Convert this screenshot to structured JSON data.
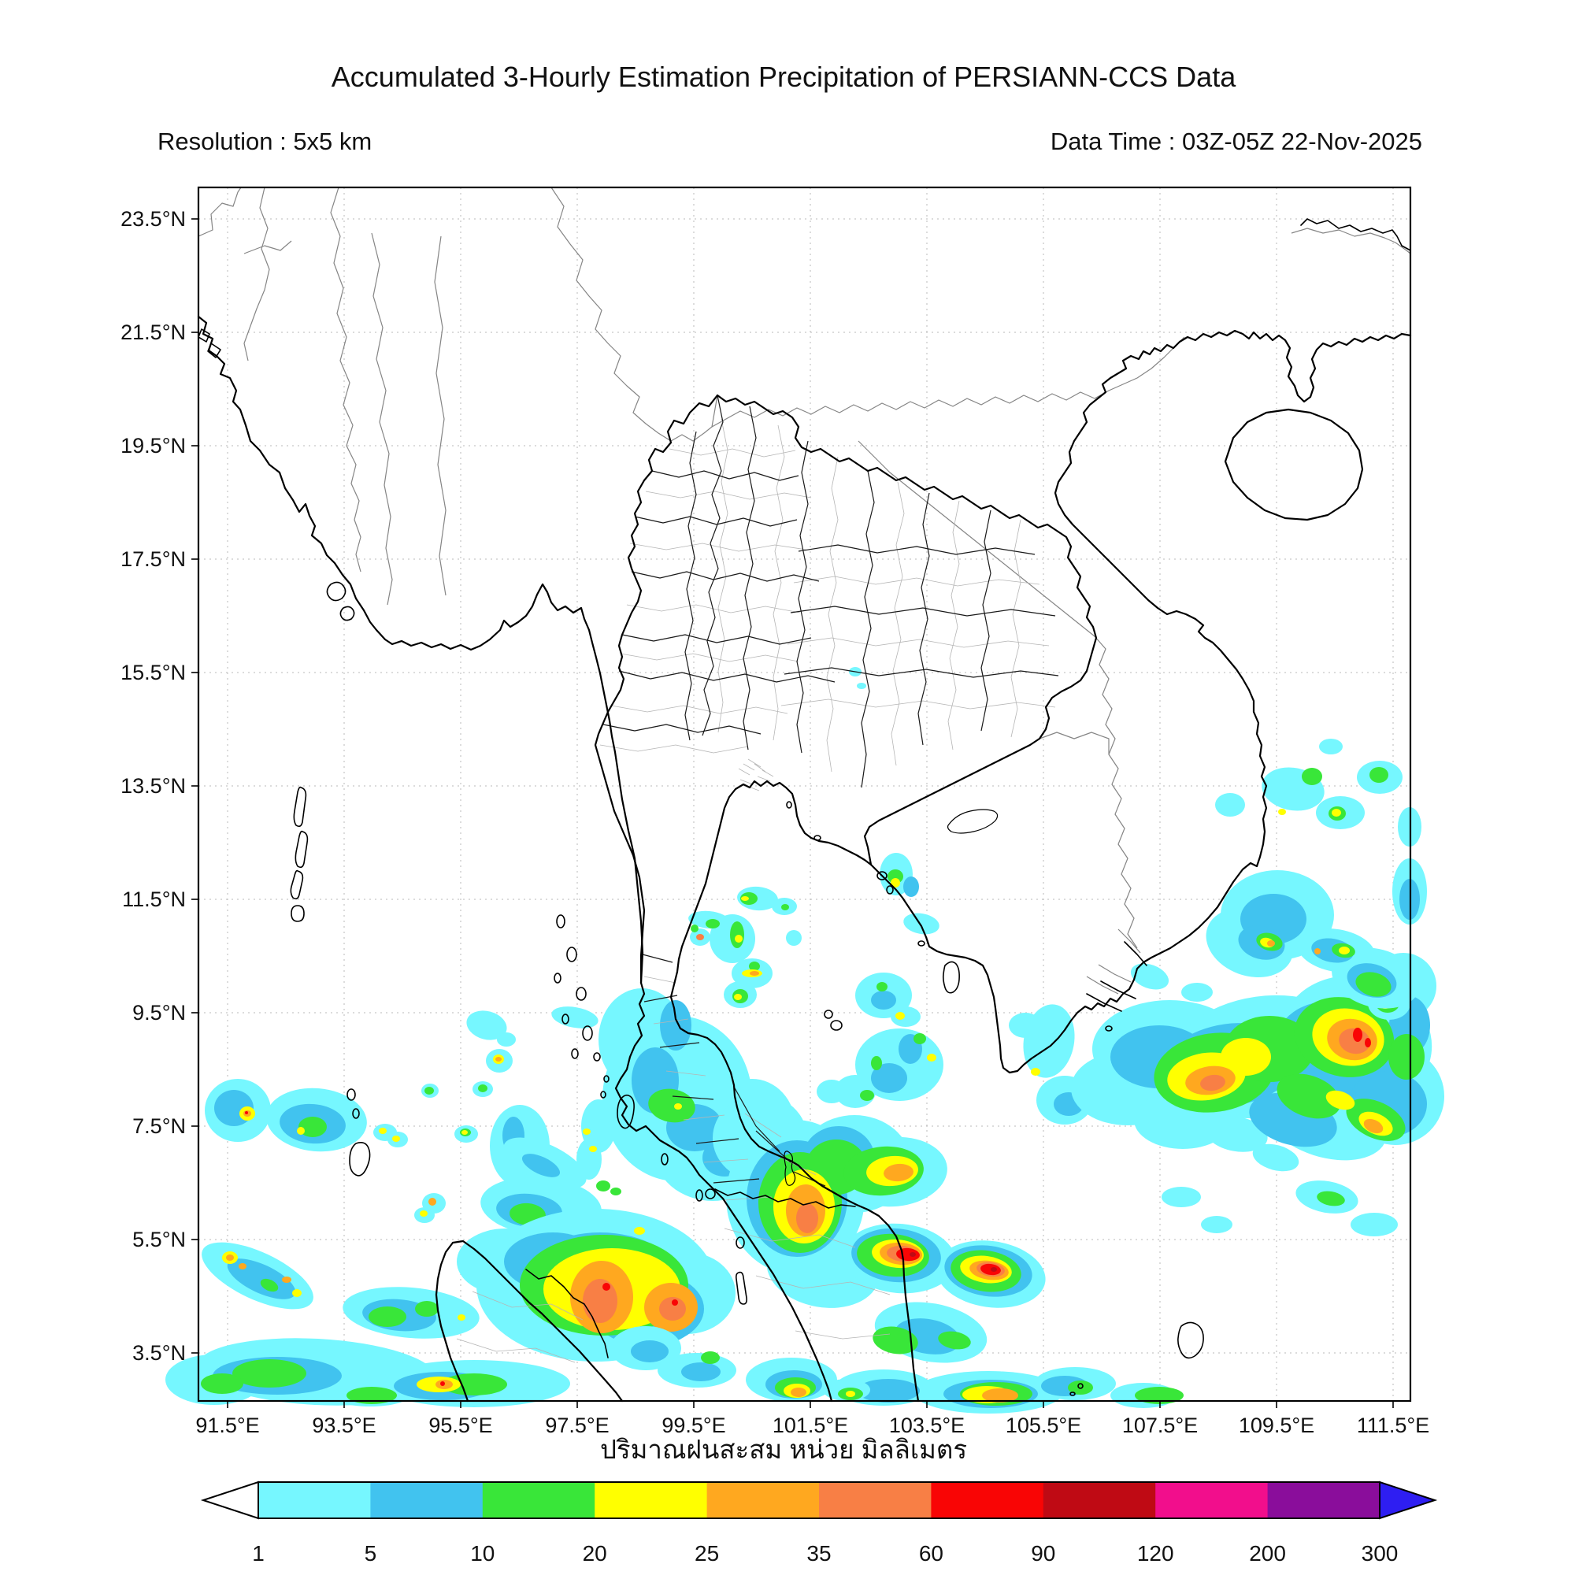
{
  "header": {
    "title": "Accumulated 3-Hourly Estimation Precipitation of PERSIANN-CCS Data",
    "resolution": "Resolution : 5x5 km",
    "data_time": "Data Time : 03Z-05Z 22-Nov-2025"
  },
  "caption_thai": "ปริมาณฝนสะสม หน่วย มิลลิเมตร",
  "axes": {
    "lat_ticks": [
      "23.5°N",
      "21.5°N",
      "19.5°N",
      "17.5°N",
      "15.5°N",
      "13.5°N",
      "11.5°N",
      "9.5°N",
      "7.5°N",
      "5.5°N",
      "3.5°N"
    ],
    "lon_ticks": [
      "91.5°E",
      "93.5°E",
      "95.5°E",
      "97.5°E",
      "99.5°E",
      "101.5°E",
      "103.5°E",
      "105.5°E",
      "107.5°E",
      "109.5°E",
      "111.5°E"
    ]
  },
  "colorbar": {
    "values": [
      "1",
      "5",
      "10",
      "20",
      "25",
      "35",
      "60",
      "90",
      "120",
      "200",
      "300"
    ],
    "segment_colors": [
      "#76F7FF",
      "#41C3EF",
      "#39E639",
      "#FFFF00",
      "#FFA81F",
      "#F87F45",
      "#F90505",
      "#BF0A14",
      "#F20E8C",
      "#8A0D9B"
    ],
    "left_arrow_color": "#FFFFFF",
    "right_arrow_color": "#2E1EF2",
    "unit": "mm",
    "scale_mm": [
      1,
      5,
      10,
      20,
      25,
      35,
      60,
      90,
      120,
      200,
      300
    ]
  },
  "palette": {
    "p1": "#76F7FF",
    "p5": "#41C3EF",
    "p10": "#39E639",
    "p20": "#FFFF00",
    "p25": "#FFA81F",
    "p35": "#F87F45",
    "p60": "#F90505",
    "p90": "#BF0A14",
    "p120": "#F20E8C",
    "p200": "#8A0D9B",
    "p300": "#2E1EF2"
  }
}
